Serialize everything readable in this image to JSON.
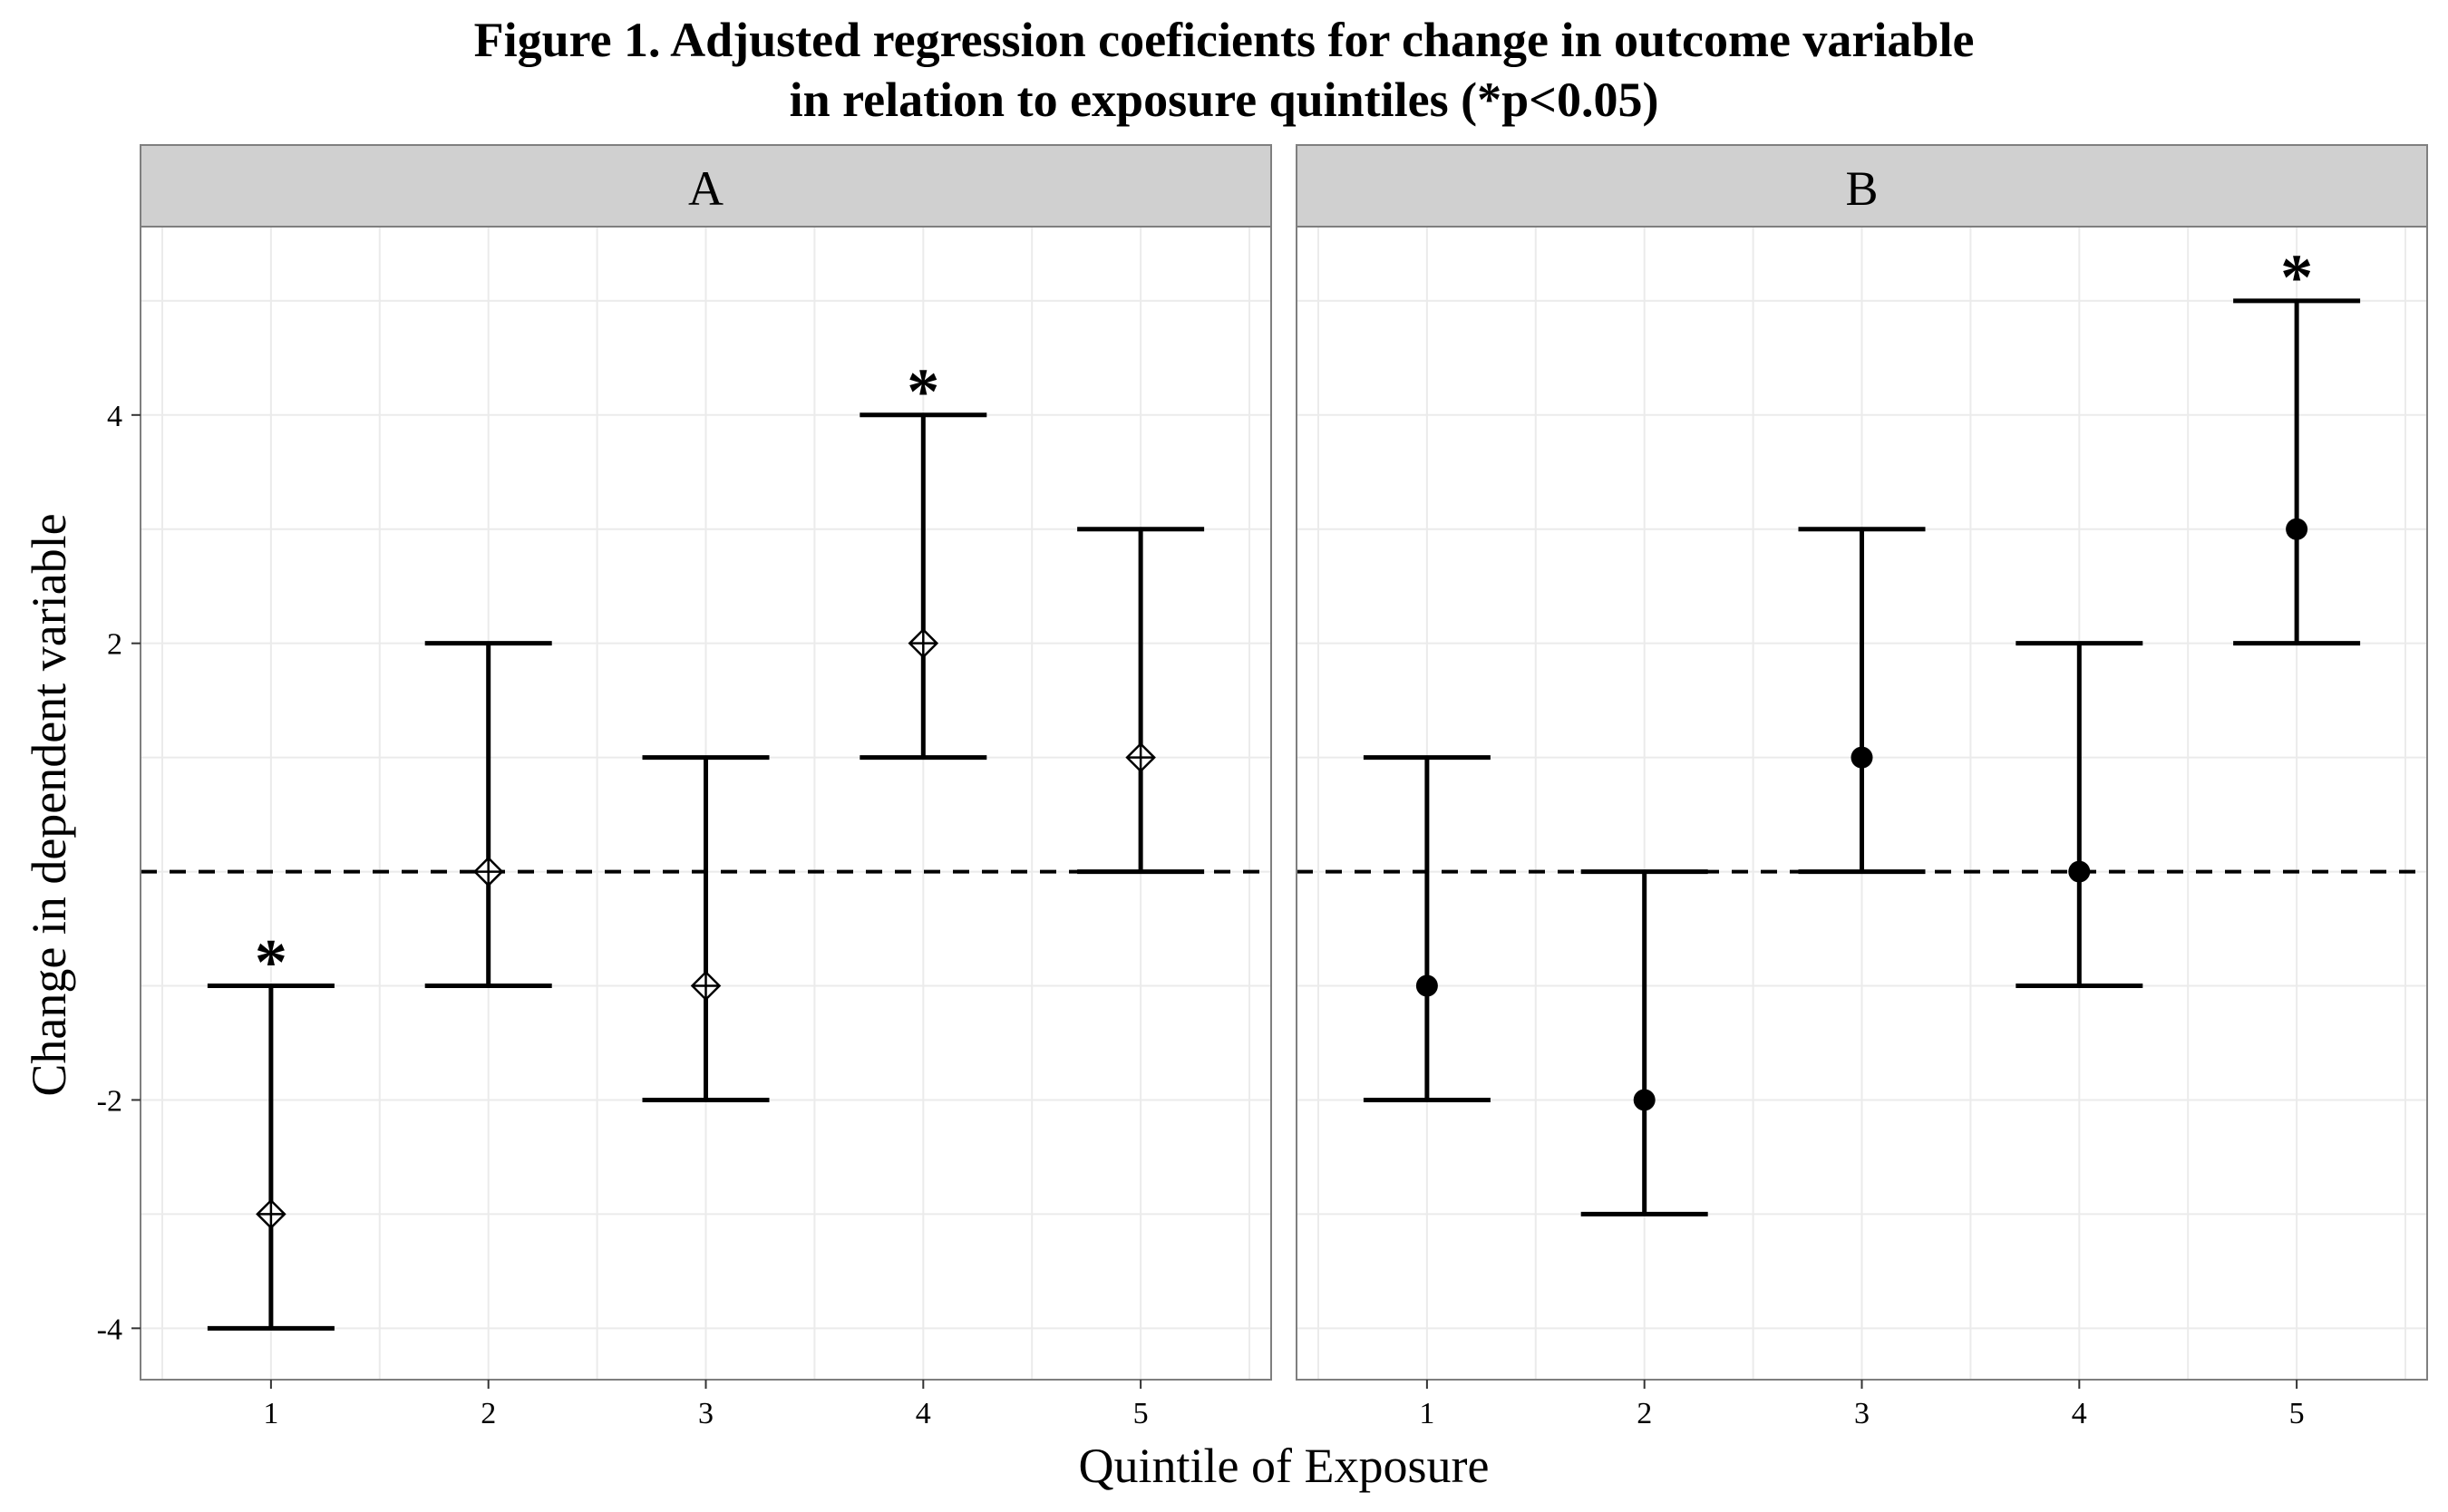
{
  "title_lines": [
    "Figure 1. Adjusted regression coeficients for change in outcome variable",
    "in relation to exposure quintiles (*p<0.05)"
  ],
  "chart_data": {
    "type": "errorbar",
    "xlabel": "Quintile of Exposure",
    "ylabel": "Change in dependent variable",
    "ylim": [
      -4.45,
      5.65
    ],
    "yticks": [
      -4,
      -2,
      2,
      4
    ],
    "ytick_labels": [
      "-4",
      "-2",
      "2",
      "4"
    ],
    "xticks": [
      1,
      2,
      3,
      4,
      5
    ],
    "xtick_labels": [
      "1",
      "2",
      "3",
      "4",
      "5"
    ],
    "xlim": [
      0.4,
      5.6
    ],
    "reference_line": {
      "y": 0,
      "style": "dashed"
    },
    "grid": true,
    "significance_marker": "*",
    "panels": [
      {
        "label": "A",
        "marker": "diamond-open",
        "points": [
          {
            "x": 1,
            "estimate": -3,
            "lower": -4,
            "upper": -1,
            "significant": true
          },
          {
            "x": 2,
            "estimate": 0,
            "lower": -1,
            "upper": 2,
            "significant": false
          },
          {
            "x": 3,
            "estimate": -1,
            "lower": -2,
            "upper": 1,
            "significant": false
          },
          {
            "x": 4,
            "estimate": 2,
            "lower": 1,
            "upper": 4,
            "significant": true
          },
          {
            "x": 5,
            "estimate": 1,
            "lower": 0,
            "upper": 3,
            "significant": false
          }
        ]
      },
      {
        "label": "B",
        "marker": "circle-filled",
        "points": [
          {
            "x": 1,
            "estimate": -1,
            "lower": -2,
            "upper": 1,
            "significant": false
          },
          {
            "x": 2,
            "estimate": -2,
            "lower": -3,
            "upper": 0,
            "significant": false
          },
          {
            "x": 3,
            "estimate": 1,
            "lower": 0,
            "upper": 3,
            "significant": false
          },
          {
            "x": 4,
            "estimate": 0,
            "lower": -1,
            "upper": 2,
            "significant": false
          },
          {
            "x": 5,
            "estimate": 3,
            "lower": 2,
            "upper": 5,
            "significant": true
          }
        ]
      }
    ]
  }
}
